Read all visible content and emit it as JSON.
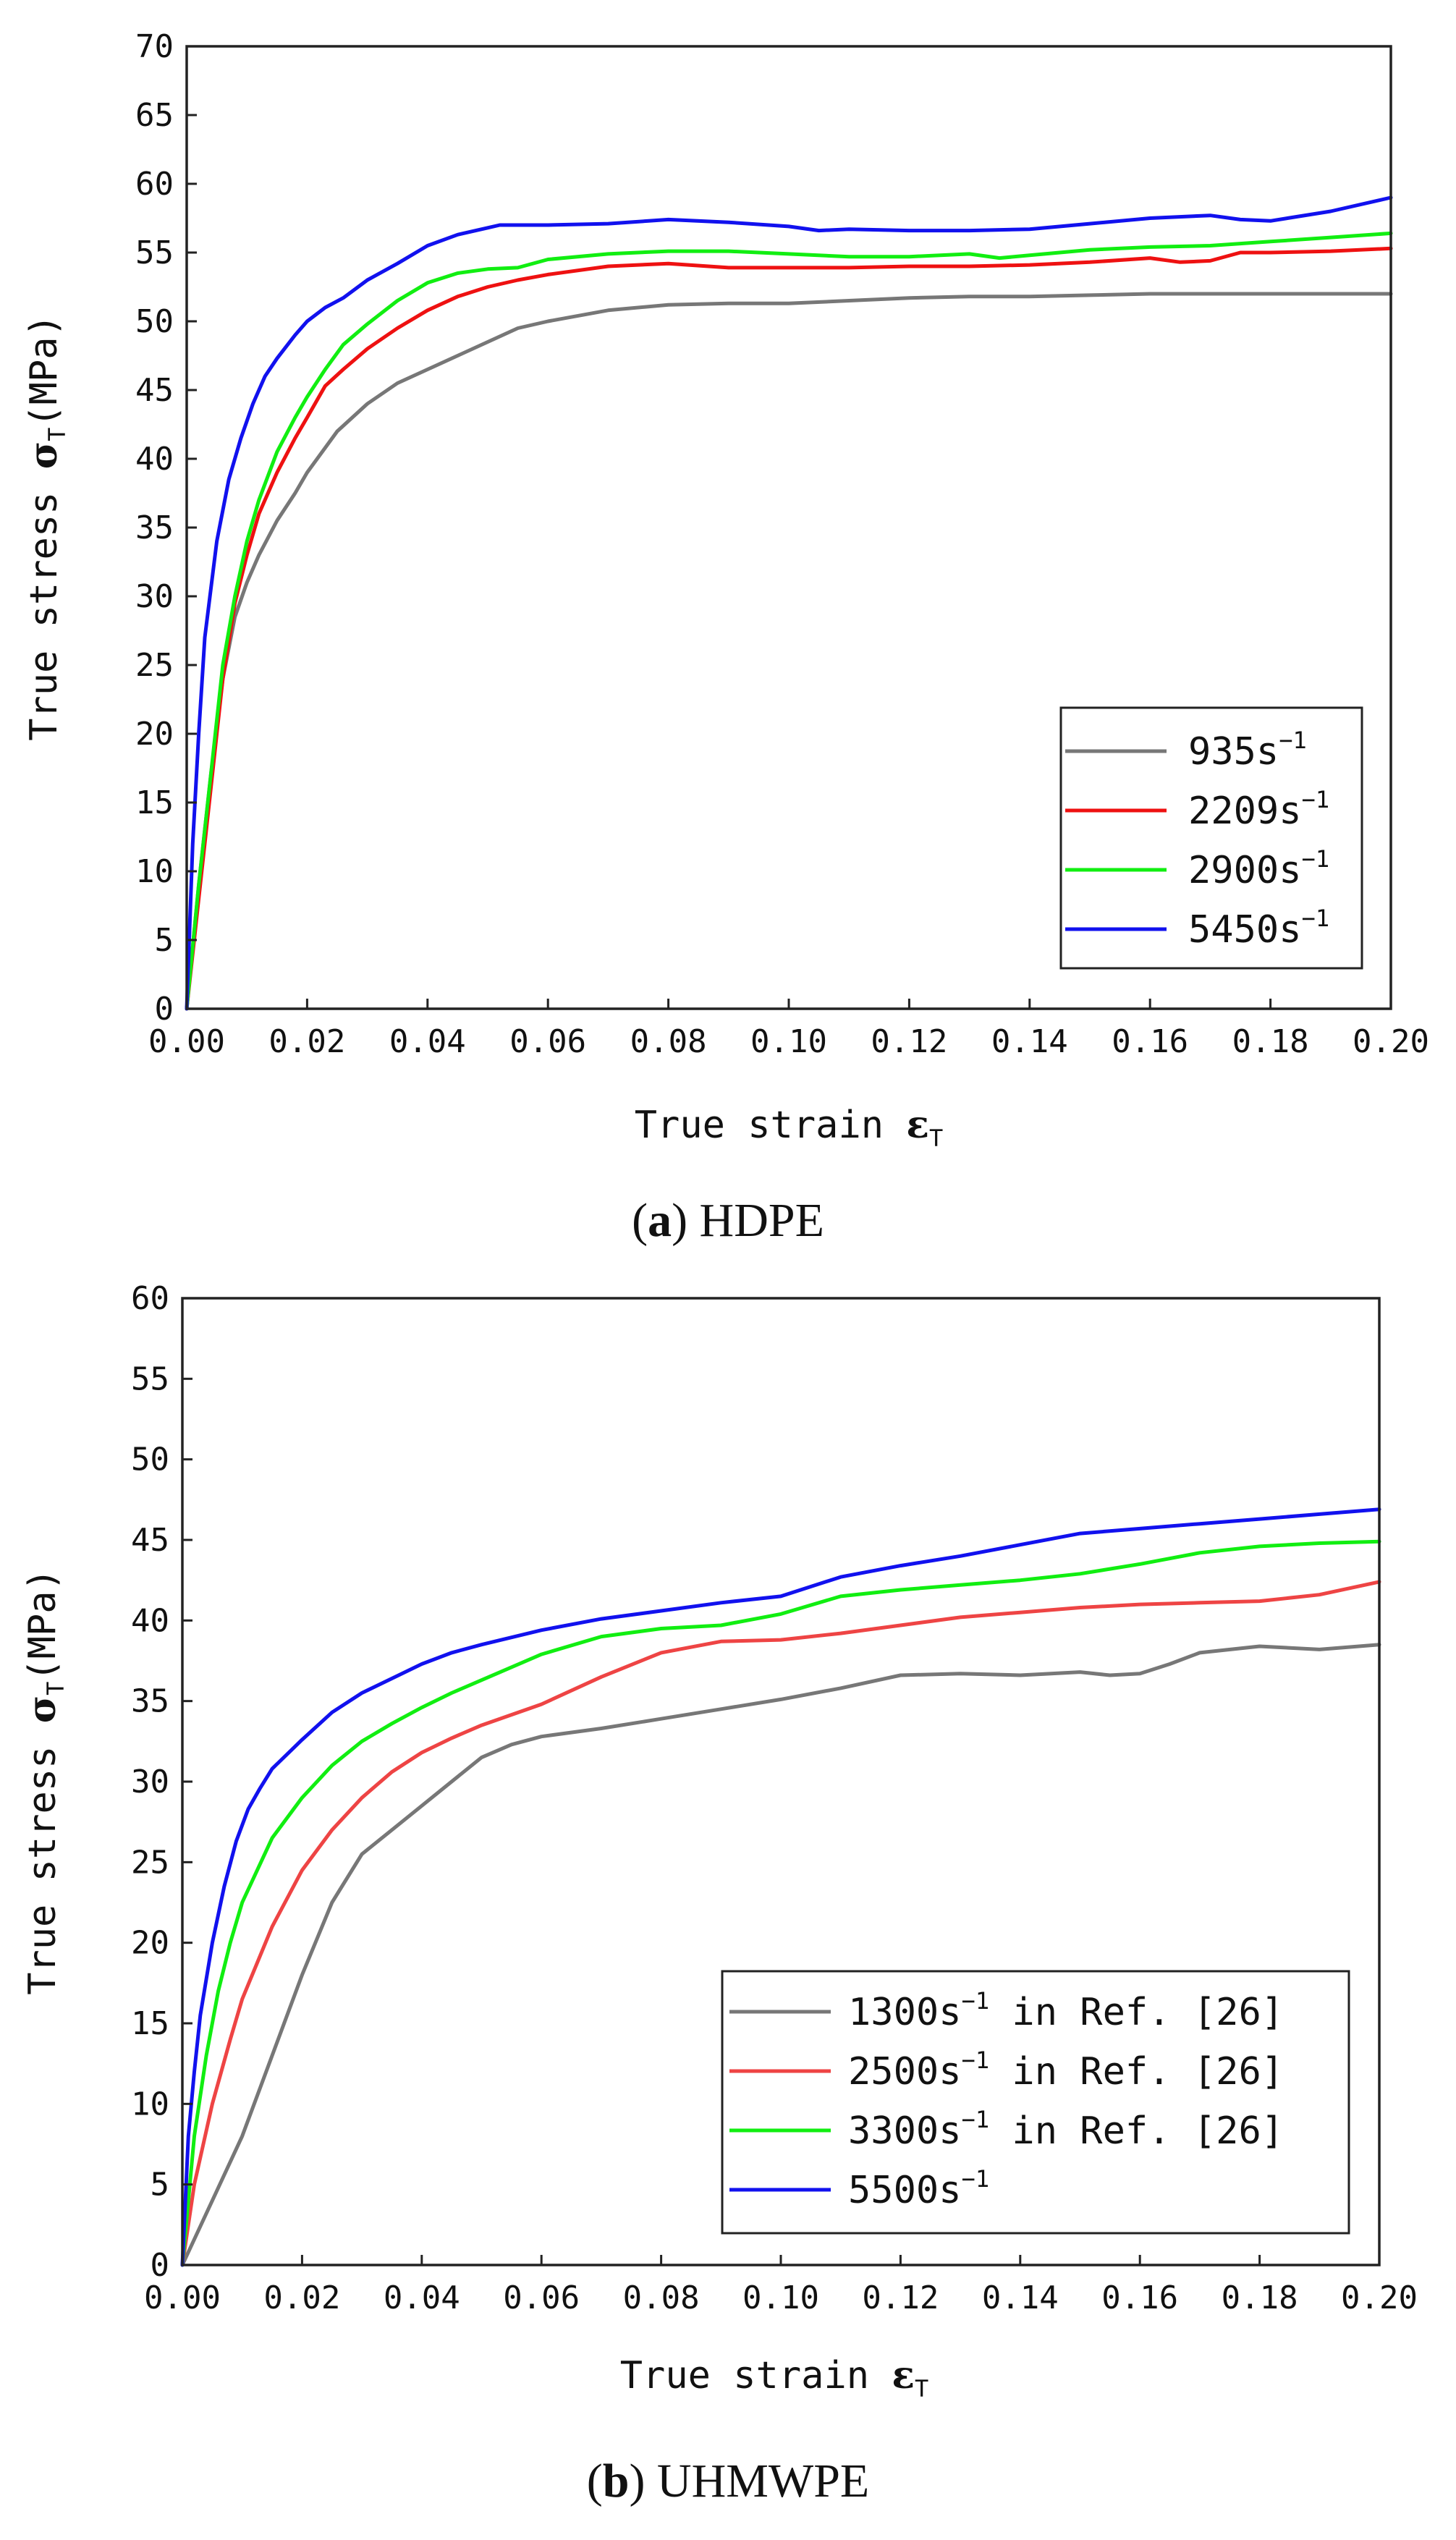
{
  "chart_data": [
    {
      "type": "line",
      "panel": "a",
      "caption_label": "a",
      "caption_text": "HDPE",
      "xlabel": "True strain",
      "xlabel_symbol": "ε",
      "xlabel_sub": "T",
      "ylabel": "True stress",
      "ylabel_symbol": "σ",
      "ylabel_sub": "T",
      "ylabel_unit": "(MPa)",
      "xlim": [
        0,
        0.2
      ],
      "ylim": [
        0,
        70
      ],
      "xticks": [
        "0.00",
        "0.02",
        "0.04",
        "0.06",
        "0.08",
        "0.10",
        "0.12",
        "0.14",
        "0.16",
        "0.18",
        "0.20"
      ],
      "yticks": [
        "0",
        "5",
        "10",
        "15",
        "20",
        "25",
        "30",
        "35",
        "40",
        "45",
        "50",
        "55",
        "60",
        "65",
        "70"
      ],
      "legend_position": "lower-right",
      "series": [
        {
          "name": "935s",
          "superscript": "−1",
          "suffix": "",
          "color": "#777777",
          "x": [
            0,
            0.002,
            0.004,
            0.006,
            0.008,
            0.01,
            0.012,
            0.015,
            0.018,
            0.02,
            0.025,
            0.03,
            0.035,
            0.04,
            0.045,
            0.05,
            0.055,
            0.06,
            0.07,
            0.08,
            0.09,
            0.1,
            0.11,
            0.12,
            0.13,
            0.14,
            0.15,
            0.16,
            0.17,
            0.18,
            0.19,
            0.2
          ],
          "y": [
            0,
            9,
            17,
            24,
            28.5,
            31,
            33,
            35.5,
            37.5,
            39,
            42,
            44,
            45.5,
            46.5,
            47.5,
            48.5,
            49.5,
            50,
            50.8,
            51.2,
            51.3,
            51.3,
            51.5,
            51.7,
            51.8,
            51.8,
            51.9,
            52,
            52,
            52,
            52,
            52
          ]
        },
        {
          "name": "2209s",
          "superscript": "−1",
          "suffix": "",
          "color": "#ee1111",
          "x": [
            0,
            0.002,
            0.004,
            0.006,
            0.008,
            0.01,
            0.012,
            0.015,
            0.018,
            0.02,
            0.023,
            0.026,
            0.03,
            0.035,
            0.04,
            0.045,
            0.05,
            0.055,
            0.06,
            0.07,
            0.08,
            0.09,
            0.1,
            0.11,
            0.12,
            0.13,
            0.14,
            0.15,
            0.16,
            0.165,
            0.17,
            0.175,
            0.18,
            0.19,
            0.2
          ],
          "y": [
            0,
            8,
            16,
            24,
            29.5,
            33,
            36,
            39,
            41.5,
            43,
            45.3,
            46.5,
            48,
            49.5,
            50.8,
            51.8,
            52.5,
            53,
            53.4,
            54,
            54.2,
            53.9,
            53.9,
            53.9,
            54,
            54,
            54.1,
            54.3,
            54.6,
            54.3,
            54.4,
            55,
            55,
            55.1,
            55.3
          ]
        },
        {
          "name": "2900s",
          "superscript": "−1",
          "suffix": "",
          "color": "#11ee11",
          "x": [
            0,
            0.002,
            0.004,
            0.006,
            0.008,
            0.01,
            0.012,
            0.015,
            0.018,
            0.02,
            0.023,
            0.026,
            0.03,
            0.035,
            0.04,
            0.045,
            0.05,
            0.055,
            0.06,
            0.07,
            0.08,
            0.09,
            0.1,
            0.11,
            0.12,
            0.13,
            0.135,
            0.14,
            0.15,
            0.16,
            0.17,
            0.18,
            0.19,
            0.2
          ],
          "y": [
            0,
            9,
            17,
            25,
            30,
            34,
            37,
            40.5,
            43,
            44.5,
            46.5,
            48.3,
            49.8,
            51.5,
            52.8,
            53.5,
            53.8,
            53.9,
            54.5,
            54.9,
            55.1,
            55.1,
            54.9,
            54.7,
            54.7,
            54.9,
            54.6,
            54.8,
            55.2,
            55.4,
            55.5,
            55.8,
            56.1,
            56.4
          ]
        },
        {
          "name": "5450s",
          "superscript": "−1",
          "suffix": "",
          "color": "#1111ee",
          "x": [
            0,
            0.001,
            0.002,
            0.003,
            0.005,
            0.007,
            0.009,
            0.011,
            0.013,
            0.015,
            0.018,
            0.02,
            0.023,
            0.026,
            0.03,
            0.035,
            0.04,
            0.045,
            0.05,
            0.052,
            0.055,
            0.06,
            0.07,
            0.08,
            0.09,
            0.1,
            0.105,
            0.11,
            0.12,
            0.13,
            0.14,
            0.15,
            0.16,
            0.17,
            0.175,
            0.18,
            0.19,
            0.2
          ],
          "y": [
            0,
            12,
            20,
            27,
            34,
            38.5,
            41.5,
            44,
            46,
            47.3,
            49,
            50,
            51,
            51.7,
            53,
            54.2,
            55.5,
            56.3,
            56.8,
            57,
            57,
            57,
            57.1,
            57.4,
            57.2,
            56.9,
            56.6,
            56.7,
            56.6,
            56.6,
            56.7,
            57.1,
            57.5,
            57.7,
            57.4,
            57.3,
            58,
            59
          ]
        }
      ]
    },
    {
      "type": "line",
      "panel": "b",
      "caption_label": "b",
      "caption_text": "UHMWPE",
      "xlabel": "True strain",
      "xlabel_symbol": "ε",
      "xlabel_sub": "T",
      "ylabel": "True stress",
      "ylabel_symbol": "σ",
      "ylabel_sub": "T",
      "ylabel_unit": "(MPa)",
      "xlim": [
        0,
        0.2
      ],
      "ylim": [
        0,
        60
      ],
      "xticks": [
        "0.00",
        "0.02",
        "0.04",
        "0.06",
        "0.08",
        "0.10",
        "0.12",
        "0.14",
        "0.16",
        "0.18",
        "0.20"
      ],
      "yticks": [
        "0",
        "5",
        "10",
        "15",
        "20",
        "25",
        "30",
        "35",
        "40",
        "45",
        "50",
        "55",
        "60"
      ],
      "legend_position": "lower-right",
      "series": [
        {
          "name": "1300s",
          "superscript": "−1",
          "suffix": " in Ref. [26]",
          "color": "#777777",
          "x": [
            0,
            0.005,
            0.01,
            0.015,
            0.02,
            0.025,
            0.03,
            0.035,
            0.04,
            0.045,
            0.05,
            0.055,
            0.06,
            0.07,
            0.08,
            0.09,
            0.1,
            0.11,
            0.12,
            0.13,
            0.14,
            0.15,
            0.155,
            0.16,
            0.165,
            0.17,
            0.18,
            0.19,
            0.2
          ],
          "y": [
            0,
            4,
            8,
            13,
            18,
            22.5,
            25.5,
            27,
            28.5,
            30,
            31.5,
            32.3,
            32.8,
            33.3,
            33.9,
            34.5,
            35.1,
            35.8,
            36.6,
            36.7,
            36.6,
            36.8,
            36.6,
            36.7,
            37.3,
            38,
            38.4,
            38.2,
            38.5
          ]
        },
        {
          "name": "2500s",
          "superscript": "−1",
          "suffix": " in Ref. [26]",
          "color": "#ee4444",
          "x": [
            0,
            0.002,
            0.005,
            0.008,
            0.01,
            0.015,
            0.02,
            0.025,
            0.03,
            0.035,
            0.04,
            0.045,
            0.05,
            0.06,
            0.07,
            0.08,
            0.09,
            0.1,
            0.11,
            0.12,
            0.13,
            0.14,
            0.15,
            0.16,
            0.17,
            0.18,
            0.19,
            0.2
          ],
          "y": [
            0,
            5,
            10,
            14,
            16.5,
            21,
            24.5,
            27,
            29,
            30.6,
            31.8,
            32.7,
            33.5,
            34.8,
            36.5,
            38,
            38.7,
            38.8,
            39.2,
            39.7,
            40.2,
            40.5,
            40.8,
            41,
            41.1,
            41.2,
            41.6,
            42.4
          ]
        },
        {
          "name": "3300s",
          "superscript": "−1",
          "suffix": " in Ref. [26]",
          "color": "#11ee11",
          "x": [
            0,
            0.002,
            0.004,
            0.006,
            0.008,
            0.01,
            0.015,
            0.02,
            0.025,
            0.03,
            0.035,
            0.04,
            0.045,
            0.05,
            0.06,
            0.07,
            0.08,
            0.09,
            0.1,
            0.11,
            0.12,
            0.13,
            0.14,
            0.15,
            0.16,
            0.17,
            0.18,
            0.19,
            0.2
          ],
          "y": [
            0,
            8,
            13,
            17,
            20,
            22.5,
            26.5,
            29,
            31,
            32.5,
            33.6,
            34.6,
            35.5,
            36.3,
            37.9,
            39,
            39.5,
            39.7,
            40.4,
            41.5,
            41.9,
            42.2,
            42.5,
            42.9,
            43.5,
            44.2,
            44.6,
            44.8,
            44.9
          ]
        },
        {
          "name": "5500s",
          "superscript": "−1",
          "suffix": "",
          "color": "#1111ee",
          "x": [
            0,
            0.001,
            0.002,
            0.003,
            0.005,
            0.007,
            0.009,
            0.011,
            0.013,
            0.015,
            0.02,
            0.025,
            0.03,
            0.035,
            0.04,
            0.045,
            0.05,
            0.06,
            0.07,
            0.08,
            0.09,
            0.1,
            0.11,
            0.12,
            0.13,
            0.14,
            0.15,
            0.16,
            0.17,
            0.18,
            0.19,
            0.2
          ],
          "y": [
            0,
            8,
            12,
            15.5,
            20,
            23.5,
            26.3,
            28.3,
            29.6,
            30.8,
            32.6,
            34.3,
            35.5,
            36.4,
            37.3,
            38,
            38.5,
            39.4,
            40.1,
            40.6,
            41.1,
            41.5,
            42.7,
            43.4,
            44,
            44.7,
            45.4,
            45.7,
            46,
            46.3,
            46.6,
            46.9
          ]
        }
      ]
    }
  ]
}
